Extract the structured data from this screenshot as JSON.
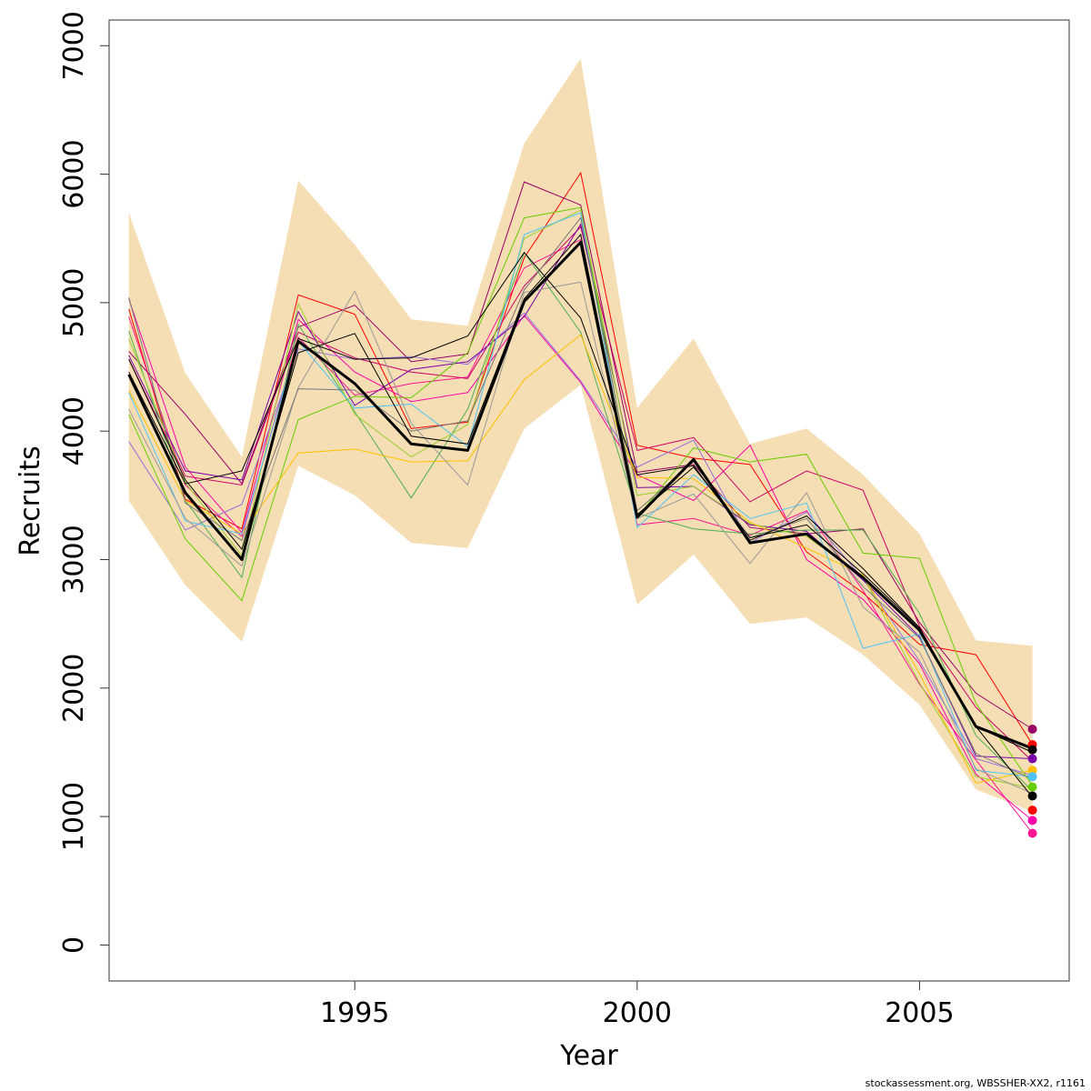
{
  "chart_data": {
    "type": "line",
    "xlabel": "Year",
    "ylabel": "Recruits",
    "credit": "stockassessment.org, WBSSHER-XX2, r1161",
    "xlim": [
      1990.65,
      2007.65
    ],
    "ylim": [
      -280,
      7200
    ],
    "x_ticks": [
      1995,
      2000,
      2005
    ],
    "y_ticks": [
      0,
      1000,
      2000,
      3000,
      4000,
      5000,
      6000,
      7000
    ],
    "grid": false,
    "x": [
      1991,
      1992,
      1993,
      1994,
      1995,
      1996,
      1997,
      1998,
      1999,
      2000,
      2001,
      2002,
      2003,
      2004,
      2005,
      2006,
      2007
    ],
    "band": {
      "color": "#f5deb3",
      "upper": [
        5700,
        4450,
        3800,
        5950,
        5450,
        4870,
        4820,
        6240,
        6900,
        4180,
        4720,
        3900,
        4020,
        3660,
        3200,
        2370,
        2330
      ],
      "lower": [
        3460,
        2800,
        2360,
        3730,
        3500,
        3130,
        3090,
        4020,
        4360,
        2650,
        3040,
        2500,
        2550,
        2260,
        1870,
        1210,
        1040
      ]
    },
    "main_series": {
      "color": "#000000",
      "values": [
        4440,
        3520,
        3000,
        4700,
        4370,
        3900,
        3850,
        5010,
        5470,
        3330,
        3780,
        3130,
        3200,
        2860,
        2450,
        1700,
        1530
      ]
    },
    "series": [
      {
        "color": "#ff0000",
        "values": [
          4950,
          3470,
          3240,
          5060,
          4910,
          4020,
          4070,
          5350,
          6010,
          3890,
          3790,
          3740,
          3060,
          2740,
          2340,
          2260,
          1560
        ]
      },
      {
        "color": "#ff1493",
        "values": [
          4890,
          3580,
          3180,
          4730,
          4280,
          4370,
          4420,
          5270,
          5490,
          3270,
          3320,
          3190,
          3380,
          2760,
          2030,
          1440,
          870
        ]
      },
      {
        "color": "#ff00aa",
        "values": [
          5030,
          3720,
          3210,
          4870,
          4460,
          4230,
          4300,
          4900,
          4380,
          3660,
          3460,
          3890,
          3000,
          2690,
          2190,
          1330,
          970
        ]
      },
      {
        "color": "#cc0066",
        "values": [
          4560,
          3650,
          3580,
          4770,
          4570,
          4460,
          4410,
          5130,
          5590,
          3850,
          3950,
          3450,
          3690,
          3540,
          2480,
          1850,
          1430
        ]
      },
      {
        "color": "#990066",
        "values": [
          4620,
          4130,
          3590,
          4810,
          4980,
          4540,
          4600,
          5940,
          5760,
          3680,
          3740,
          3250,
          3200,
          3240,
          2510,
          1960,
          1680
        ]
      },
      {
        "color": "#9370db",
        "values": [
          3920,
          3230,
          3430,
          4640,
          4560,
          4580,
          4520,
          4920,
          4390,
          3720,
          3930,
          3130,
          3370,
          2850,
          2210,
          1450,
          1320
        ]
      },
      {
        "color": "#7b00a8",
        "values": [
          4590,
          3690,
          3620,
          4930,
          4200,
          4480,
          4540,
          4890,
          5610,
          3560,
          3570,
          3270,
          3220,
          2840,
          2400,
          1470,
          1450
        ]
      },
      {
        "color": "#66cd00",
        "values": [
          4130,
          3160,
          2680,
          4090,
          4270,
          4260,
          4610,
          5660,
          5740,
          3330,
          3870,
          3760,
          3820,
          3050,
          3010,
          1880,
          1240
        ]
      },
      {
        "color": "#4caf50",
        "values": [
          4780,
          3460,
          2860,
          4830,
          4150,
          3480,
          4170,
          5390,
          4770,
          3360,
          3240,
          3200,
          3230,
          3230,
          2580,
          1630,
          1200
        ]
      },
      {
        "color": "#9acd32",
        "values": [
          4720,
          3600,
          3030,
          4990,
          4130,
          3800,
          4050,
          5500,
          5720,
          3500,
          3570,
          3280,
          3180,
          2870,
          2040,
          1310,
          1220
        ]
      },
      {
        "color": "#ffc000",
        "values": [
          4320,
          3460,
          3200,
          3830,
          3860,
          3760,
          3770,
          4400,
          4750,
          3640,
          3630,
          3290,
          3090,
          2880,
          2110,
          1260,
          1360
        ]
      },
      {
        "color": "#4fc3f7",
        "values": [
          4300,
          3300,
          3200,
          4700,
          4180,
          4210,
          3880,
          5530,
          5700,
          3250,
          3660,
          3320,
          3440,
          2310,
          2420,
          1360,
          1310
        ]
      },
      {
        "color": "#999999",
        "values": [
          4170,
          3320,
          2950,
          4340,
          5090,
          4060,
          3580,
          5080,
          5160,
          3320,
          3510,
          2970,
          3520,
          2630,
          2280,
          1370,
          1180
        ]
      },
      {
        "color": "#777777",
        "values": [
          5040,
          3440,
          3150,
          4330,
          4320,
          4000,
          4080,
          5100,
          5660,
          3380,
          3760,
          3170,
          3320,
          2790,
          2390,
          1490,
          1290
        ]
      },
      {
        "color": "#000000",
        "values": [
          4460,
          3590,
          3690,
          4720,
          4560,
          4570,
          4740,
          5390,
          4880,
          3660,
          3730,
          3150,
          3340,
          2930,
          2470,
          1700,
          1150
        ]
      },
      {
        "color": "#000000",
        "values": [
          4560,
          3620,
          3080,
          4610,
          4760,
          3960,
          3900,
          5030,
          5530,
          3350,
          3720,
          3170,
          3270,
          2890,
          2470,
          1700,
          1500
        ]
      }
    ],
    "end_points": [
      {
        "color": "#990066",
        "value": 1680
      },
      {
        "color": "#ff0000",
        "value": 1560
      },
      {
        "color": "#000000",
        "value": 1520
      },
      {
        "color": "#7b00a8",
        "value": 1450
      },
      {
        "color": "#ffc000",
        "value": 1360
      },
      {
        "color": "#4fc3f7",
        "value": 1310
      },
      {
        "color": "#66cd00",
        "value": 1230
      },
      {
        "color": "#000000",
        "value": 1160
      },
      {
        "color": "#ff0000",
        "value": 1050
      },
      {
        "color": "#ff00aa",
        "value": 970
      },
      {
        "color": "#ff1493",
        "value": 870
      }
    ]
  }
}
